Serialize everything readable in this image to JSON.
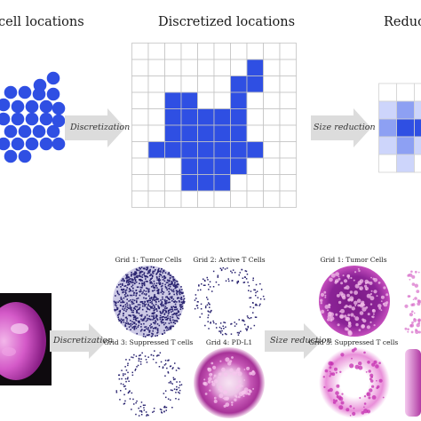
{
  "top": {
    "title_cells": "cell locations",
    "title_discrete": "Discretized locations",
    "title_reduction": "Reduc",
    "arrow_discretization": "Discretization",
    "arrow_size_reduction": "Size reduction"
  },
  "bottom": {
    "arrow_discretization": "Discretization",
    "arrow_size_reduction": "Size reduction",
    "discrete_grids": [
      "Grid 1: Tumor Cells",
      "Grid 2: Active T Cells",
      "Grid 3: Suppressed T cells",
      "Grid 4: PD-L1"
    ],
    "reduced_grids": [
      "Grid 1: Tumor Cells",
      "Grid 3: Suppressed T cells"
    ]
  },
  "colors": {
    "blue": "#2f4fe3",
    "grid_line": "#c4c4c4",
    "arrow_fill": "#dcdcdc",
    "magenta": "#c13fb0",
    "navy_dots": "#2a2470"
  }
}
